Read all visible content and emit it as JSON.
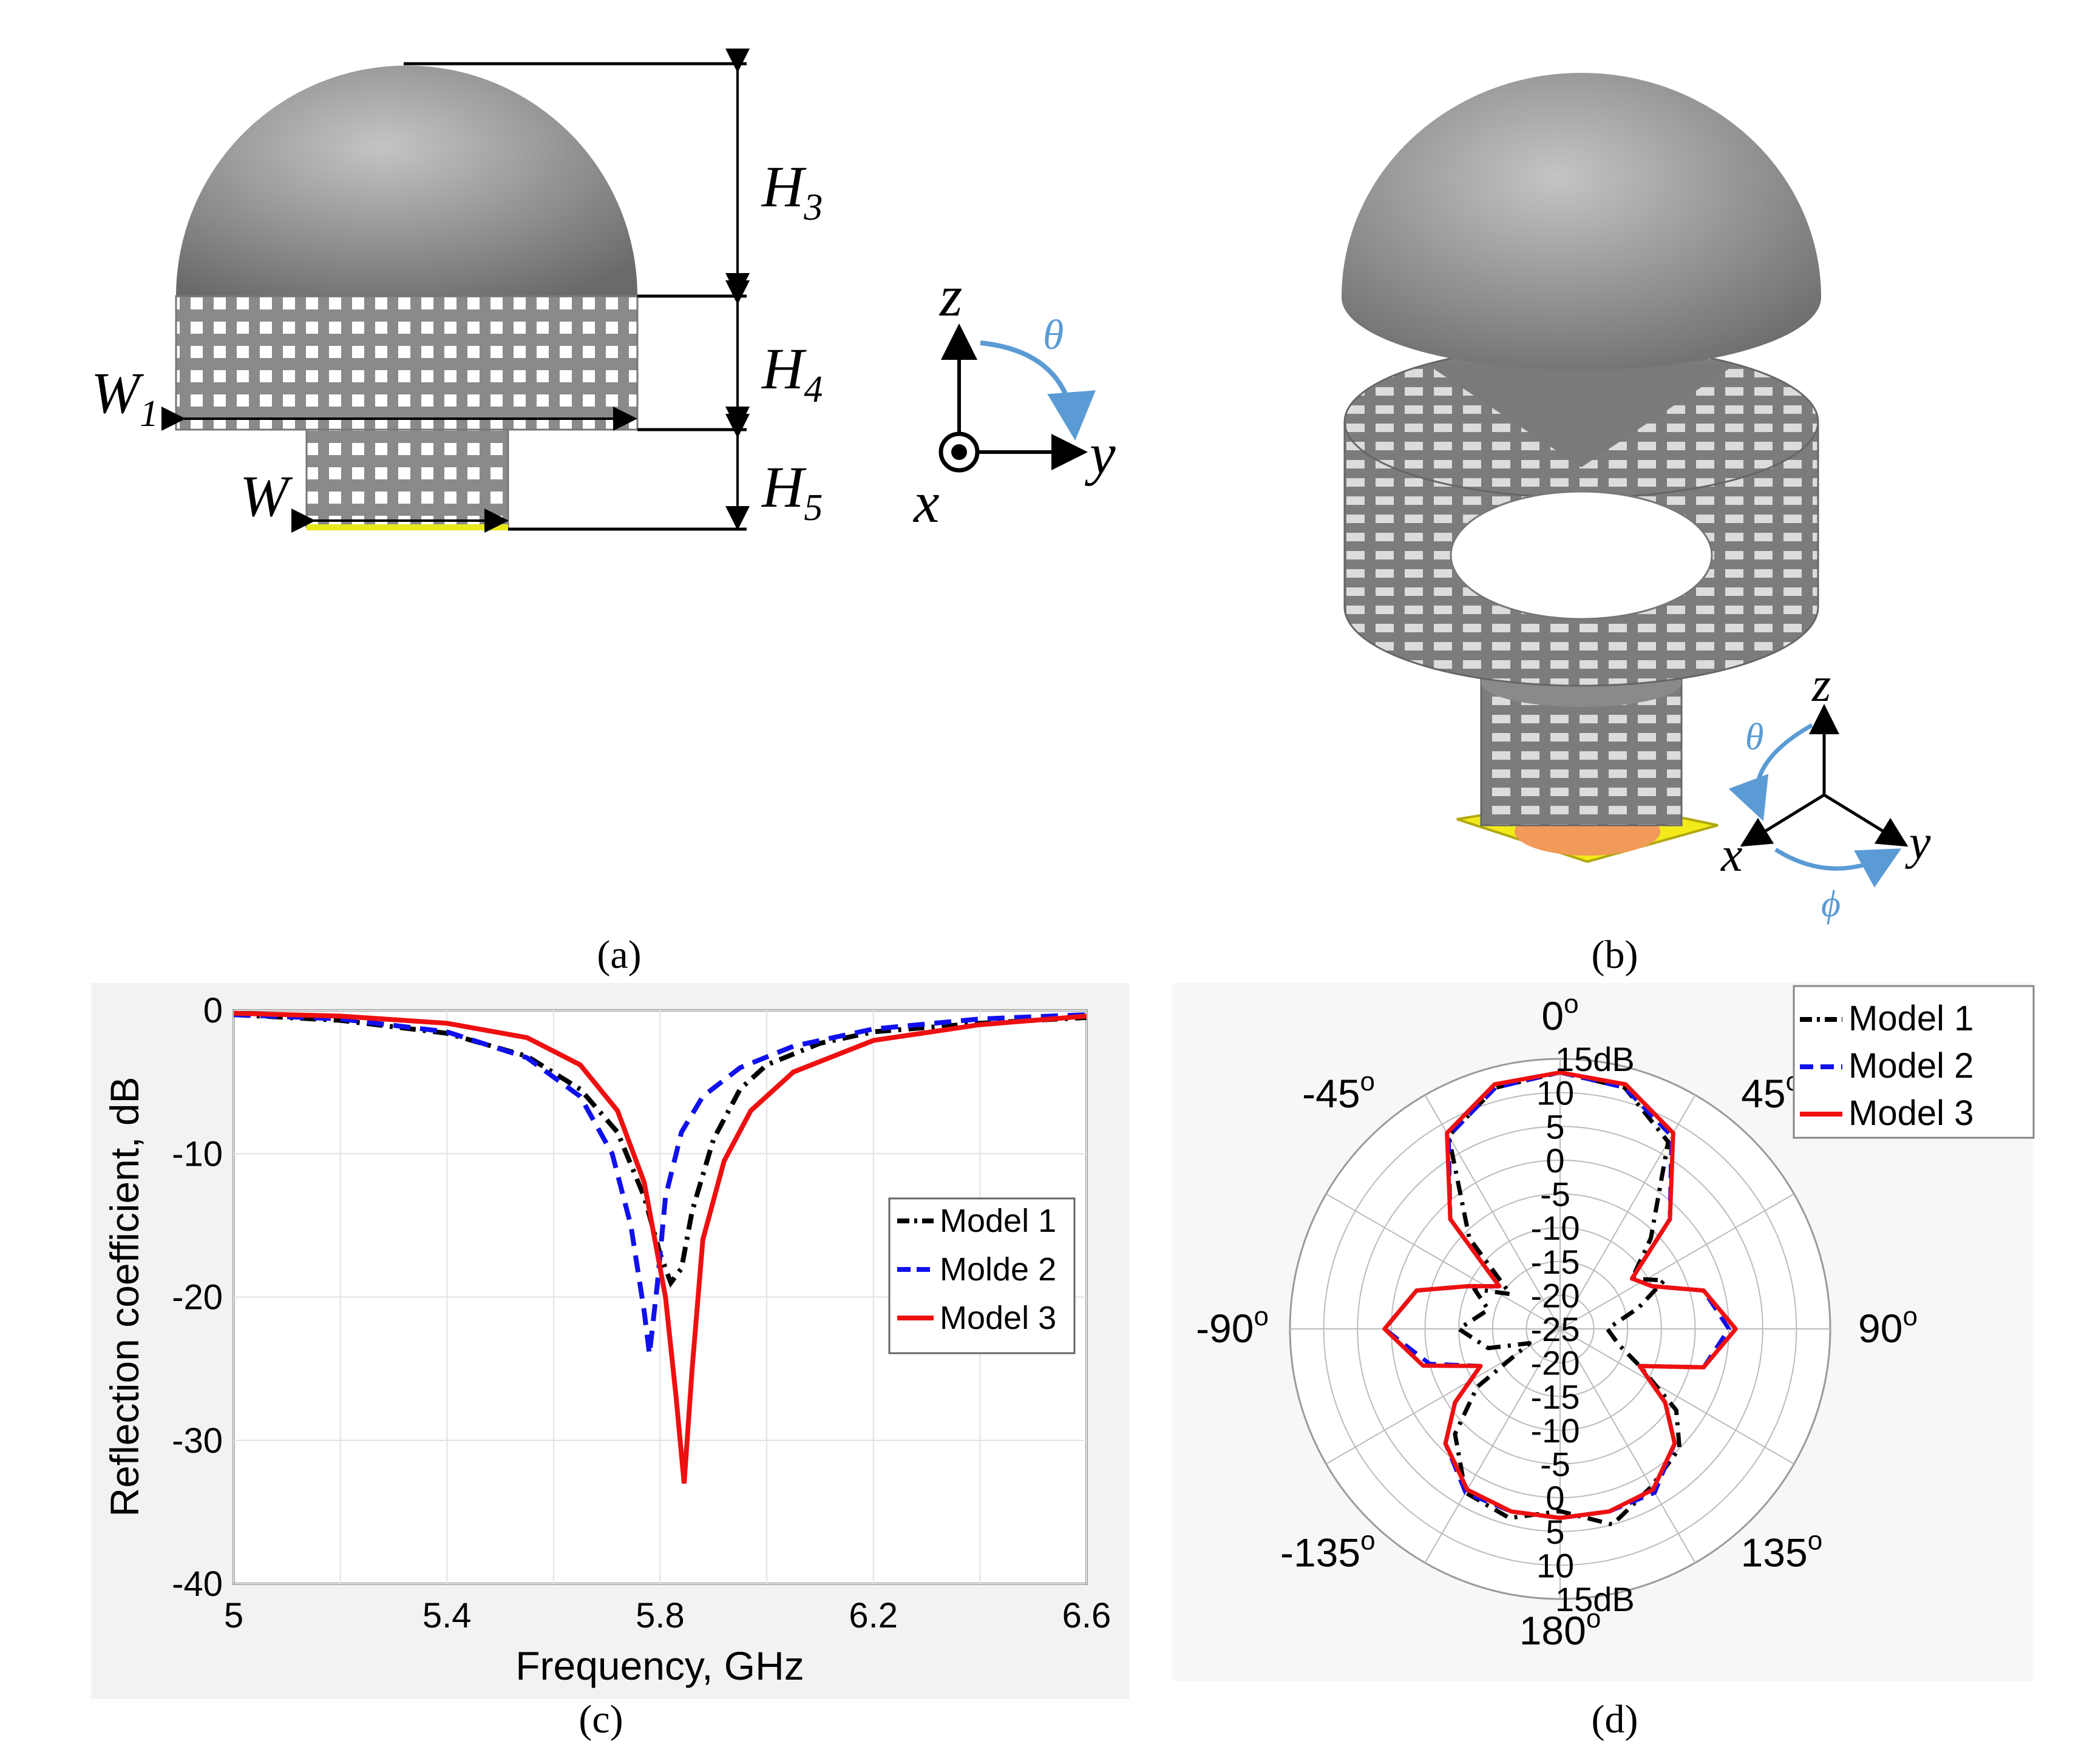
{
  "panel_a": {
    "label": "(a)",
    "dims": {
      "h3": "H3",
      "h4": "H4",
      "h5": "H5",
      "w1": "W1",
      "w": "W"
    },
    "axes": {
      "z": "z",
      "y": "y",
      "x": "x",
      "theta": "θ"
    }
  },
  "panel_b": {
    "label": "(b)",
    "axes": {
      "z": "z",
      "y": "y",
      "x": "x",
      "theta": "θ",
      "phi": "ϕ"
    }
  },
  "panel_c": {
    "label": "(c)",
    "colors": {
      "model1": "#000000",
      "model2": "#1010ee",
      "model3": "#ee1010"
    },
    "chart_data": {
      "type": "line",
      "xlabel": "Frequency, GHz",
      "ylabel": "Reflection coefficient, dB",
      "xlim": [
        5,
        6.6
      ],
      "ylim": [
        -40,
        0
      ],
      "xticks": [
        "5",
        "5.4",
        "5.8",
        "6.2",
        "6.6"
      ],
      "yticks": [
        "0",
        "-10",
        "-20",
        "-30",
        "-40"
      ],
      "grid": true,
      "legend_position": "right",
      "series": [
        {
          "name": "Model 1",
          "style": "dash-dot",
          "points": [
            [
              5.0,
              -0.3
            ],
            [
              5.2,
              -0.7
            ],
            [
              5.4,
              -1.6
            ],
            [
              5.55,
              -3.2
            ],
            [
              5.65,
              -5.5
            ],
            [
              5.72,
              -8.5
            ],
            [
              5.77,
              -13
            ],
            [
              5.8,
              -17
            ],
            [
              5.82,
              -19
            ],
            [
              5.84,
              -18
            ],
            [
              5.86,
              -14
            ],
            [
              5.9,
              -9
            ],
            [
              5.95,
              -5.5
            ],
            [
              6.0,
              -3.8
            ],
            [
              6.1,
              -2.3
            ],
            [
              6.2,
              -1.5
            ],
            [
              6.4,
              -0.9
            ],
            [
              6.6,
              -0.5
            ]
          ]
        },
        {
          "name": "Molde 2",
          "style": "dash",
          "points": [
            [
              5.0,
              -0.3
            ],
            [
              5.2,
              -0.6
            ],
            [
              5.4,
              -1.5
            ],
            [
              5.55,
              -3.3
            ],
            [
              5.65,
              -6
            ],
            [
              5.71,
              -10
            ],
            [
              5.745,
              -15
            ],
            [
              5.77,
              -21
            ],
            [
              5.78,
              -24
            ],
            [
              5.795,
              -19
            ],
            [
              5.81,
              -13
            ],
            [
              5.84,
              -8.5
            ],
            [
              5.88,
              -6
            ],
            [
              5.95,
              -4
            ],
            [
              6.05,
              -2.5
            ],
            [
              6.2,
              -1.3
            ],
            [
              6.4,
              -0.6
            ],
            [
              6.6,
              -0.3
            ]
          ]
        },
        {
          "name": "Model 3",
          "style": "solid",
          "points": [
            [
              5.0,
              -0.2
            ],
            [
              5.2,
              -0.4
            ],
            [
              5.4,
              -0.9
            ],
            [
              5.55,
              -1.9
            ],
            [
              5.65,
              -3.8
            ],
            [
              5.72,
              -7
            ],
            [
              5.77,
              -12
            ],
            [
              5.81,
              -20
            ],
            [
              5.83,
              -27
            ],
            [
              5.845,
              -33
            ],
            [
              5.86,
              -25
            ],
            [
              5.88,
              -16
            ],
            [
              5.92,
              -10.5
            ],
            [
              5.97,
              -7
            ],
            [
              6.05,
              -4.3
            ],
            [
              6.2,
              -2.1
            ],
            [
              6.4,
              -1
            ],
            [
              6.6,
              -0.4
            ]
          ]
        }
      ]
    }
  },
  "panel_d": {
    "label": "(d)",
    "chart_data": {
      "type": "polar",
      "r_range_db": [
        -25,
        15
      ],
      "r_tick_labels_top": [
        "15dB",
        "10",
        "5",
        "0",
        "-5",
        "-10",
        "-15",
        "-20",
        "-25"
      ],
      "r_tick_labels_bottom": [
        "-25",
        "-20",
        "-15",
        "-10",
        "-5",
        "0",
        "5",
        "10",
        "15dB"
      ],
      "angle_labels": [
        "0",
        "45",
        "90",
        "135",
        "180",
        "-135",
        "-90",
        "-45"
      ],
      "legend_position": "top-right",
      "series": [
        {
          "name": "Model 1",
          "style": "dash-dot",
          "theta_deg": [
            0,
            15,
            30,
            45,
            55,
            65,
            75,
            90,
            105,
            115,
            125,
            135,
            150,
            165,
            180,
            195,
            210,
            225,
            235,
            245,
            255,
            270,
            285,
            295,
            305,
            315,
            330,
            345
          ],
          "gain_db": [
            13,
            12,
            7,
            -6,
            -12,
            -8,
            -13,
            -18,
            -16,
            -12,
            -4,
            0,
            2,
            5,
            2,
            4,
            3,
            -3,
            -10,
            -20,
            -14,
            -10,
            -14,
            -11,
            -16,
            -6,
            8,
            12
          ]
        },
        {
          "name": "Model 2",
          "style": "dash",
          "theta_deg": [
            0,
            15,
            30,
            45,
            55,
            65,
            75,
            90,
            105,
            115,
            125,
            135,
            150,
            165,
            180,
            195,
            210,
            225,
            235,
            245,
            255,
            270,
            285,
            295,
            305,
            315,
            330,
            345
          ],
          "gain_db": [
            13,
            12,
            8,
            -2,
            -12,
            -10,
            -3,
            0,
            -3,
            -12,
            -6,
            -1,
            3,
            3,
            3,
            3,
            3,
            -1,
            -6,
            -12,
            -5,
            1,
            -3,
            -10,
            -14,
            -2,
            8,
            12
          ]
        },
        {
          "name": "Model 3",
          "style": "solid",
          "theta_deg": [
            0,
            15,
            30,
            45,
            55,
            65,
            75,
            90,
            105,
            115,
            125,
            135,
            150,
            165,
            180,
            195,
            210,
            225,
            235,
            245,
            255,
            270,
            285,
            295,
            305,
            315,
            330,
            345
          ],
          "gain_db": [
            13,
            12.5,
            8.5,
            -2,
            -12,
            -10,
            -3,
            1,
            -3,
            -12,
            -6,
            -1,
            2.5,
            3,
            3,
            3,
            2.5,
            -1,
            -6,
            -12,
            -4,
            1,
            -3,
            -10,
            -14,
            -2,
            8.5,
            12.5
          ]
        }
      ]
    }
  }
}
